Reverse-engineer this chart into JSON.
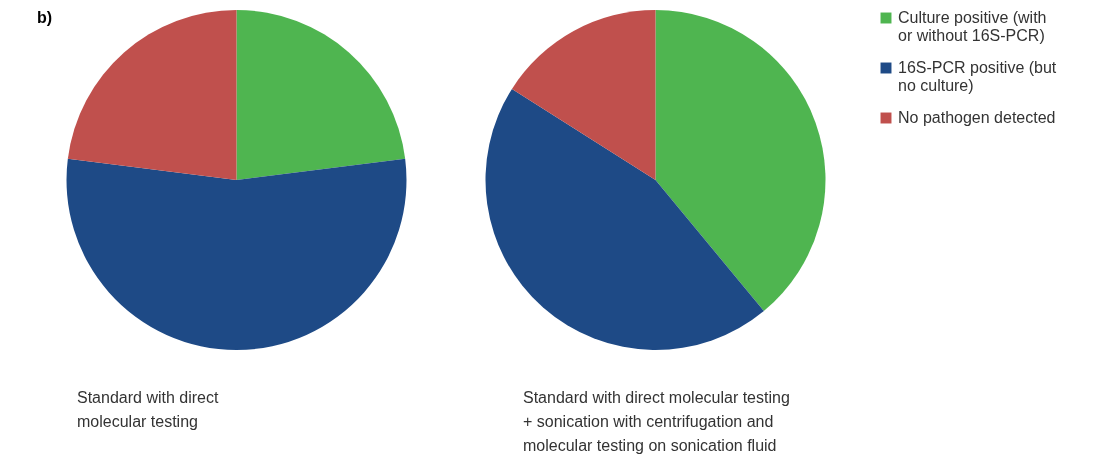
{
  "chart_data": [
    {
      "type": "pie",
      "title": "Standard with direct\nmolecular testing",
      "annotations": [
        "b)"
      ],
      "categories": [
        null,
        null,
        null
      ],
      "values": [
        23,
        54,
        23
      ],
      "colors": [
        "#4fb550",
        "#1e4a86",
        "#c0504d"
      ],
      "legend": false
    },
    {
      "type": "pie",
      "title": "Standard with direct molecular testing\n+ sonication with centrifugation and\nmolecular testing on sonication fluid",
      "categories": [
        "Culture positive (with\nor without 16S-PCR)",
        "16S-PCR positive (but\nno culture)",
        "No pathogen detected"
      ],
      "values": [
        39,
        45,
        16
      ],
      "colors": [
        "#4fb550",
        "#1e4a86",
        "#c0504d"
      ],
      "legend": "right"
    }
  ]
}
